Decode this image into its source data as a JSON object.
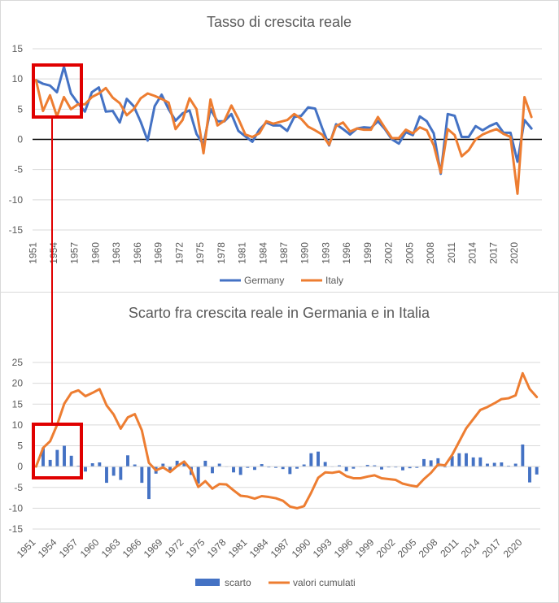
{
  "chart_data": [
    {
      "type": "line",
      "title": "Tasso di crescita reale",
      "xlabel": "",
      "ylabel": "",
      "ylim": [
        -15,
        15
      ],
      "yticks": [
        15,
        10,
        5,
        0,
        -5,
        -10,
        -15
      ],
      "x_start": 1951,
      "x_end": 2023,
      "x_tick_labels": [
        "1951",
        "1954",
        "1957",
        "1960",
        "1963",
        "1966",
        "1969",
        "1972",
        "1975",
        "1978",
        "1981",
        "1984",
        "1987",
        "1990",
        "1993",
        "1996",
        "1999",
        "2002",
        "2005",
        "2008",
        "2011",
        "2014",
        "2017",
        "2020"
      ],
      "legend_position": "bottom",
      "grid": true,
      "series": [
        {
          "name": "Germany",
          "color": "#4472C4",
          "values": [
            9.8,
            9.2,
            8.9,
            7.8,
            12.0,
            7.6,
            6.0,
            4.6,
            7.8,
            8.6,
            4.6,
            4.7,
            2.8,
            6.7,
            5.5,
            2.9,
            -0.2,
            5.5,
            7.4,
            5.0,
            3.1,
            4.3,
            4.8,
            0.9,
            -0.9,
            5.0,
            3.0,
            3.0,
            4.2,
            1.4,
            0.5,
            -0.4,
            1.6,
            2.8,
            2.3,
            2.3,
            1.4,
            3.7,
            3.9,
            5.3,
            5.1,
            1.9,
            -1.0,
            2.5,
            1.7,
            0.8,
            1.8,
            2.0,
            1.9,
            3.0,
            1.7,
            0.0,
            -0.7,
            1.2,
            0.7,
            3.8,
            3.0,
            1.0,
            -5.7,
            4.2,
            3.9,
            0.4,
            0.4,
            2.2,
            1.5,
            2.2,
            2.7,
            1.1,
            1.1,
            -3.7,
            3.2,
            1.8
          ]
        },
        {
          "name": "Italy",
          "color": "#ED7D31",
          "values": [
            9.8,
            4.7,
            7.3,
            3.8,
            7.0,
            5.0,
            5.8,
            5.8,
            7.0,
            7.6,
            8.5,
            6.9,
            6.0,
            4.0,
            5.0,
            6.8,
            7.6,
            7.2,
            6.7,
            6.1,
            1.7,
            3.2,
            6.8,
            5.0,
            -2.3,
            6.6,
            2.3,
            3.1,
            5.6,
            3.4,
            0.8,
            0.4,
            1.0,
            3.0,
            2.6,
            2.9,
            3.2,
            4.2,
            3.4,
            2.1,
            1.5,
            0.8,
            -0.9,
            2.2,
            2.8,
            1.3,
            1.8,
            1.6,
            1.6,
            3.7,
            1.9,
            0.2,
            0.2,
            1.6,
            1.0,
            2.0,
            1.5,
            -1.0,
            -5.5,
            1.7,
            0.7,
            -2.8,
            -1.8,
            0.0,
            0.8,
            1.3,
            1.7,
            0.9,
            0.4,
            -9.0,
            7.0,
            3.7
          ]
        }
      ]
    },
    {
      "type": "bar",
      "title": "Scarto fra crescita reale in Germania e in Italia",
      "xlabel": "",
      "ylabel": "",
      "ylim": [
        -15,
        25
      ],
      "yticks": [
        25,
        20,
        15,
        10,
        5,
        0,
        -5,
        -10,
        -15
      ],
      "x_start": 1951,
      "x_end": 2022,
      "x_tick_labels": [
        "1951",
        "1954",
        "1957",
        "1960",
        "1963",
        "1966",
        "1969",
        "1972",
        "1975",
        "1978",
        "1981",
        "1984",
        "1987",
        "1990",
        "1993",
        "1996",
        "1999",
        "2002",
        "2005",
        "2008",
        "2011",
        "2014",
        "2017",
        "2020"
      ],
      "legend_position": "bottom",
      "grid": true,
      "series": [
        {
          "name": "scarto",
          "type": "bar",
          "color": "#4472C4",
          "values": [
            0.0,
            4.5,
            1.6,
            4.0,
            5.0,
            2.6,
            0.2,
            -1.2,
            0.8,
            1.0,
            -3.9,
            -2.2,
            -3.2,
            2.7,
            0.5,
            -3.9,
            -7.8,
            -1.7,
            0.7,
            -1.1,
            1.4,
            1.1,
            -2.0,
            -4.1,
            1.4,
            -1.6,
            0.7,
            -0.1,
            -1.4,
            -2.0,
            -0.3,
            -0.8,
            0.6,
            -0.2,
            -0.3,
            -0.6,
            -1.8,
            -0.5,
            0.5,
            3.2,
            3.6,
            1.1,
            -0.1,
            0.3,
            -1.1,
            -0.5,
            0.0,
            0.4,
            0.3,
            -0.7,
            -0.2,
            -0.2,
            -0.9,
            -0.4,
            -0.3,
            1.8,
            1.5,
            2.0,
            -0.2,
            2.5,
            3.2,
            3.2,
            2.2,
            2.2,
            0.7,
            0.9,
            1.0,
            0.2,
            0.7,
            5.3,
            -3.8,
            -1.9
          ]
        },
        {
          "name": "valori cumulati",
          "type": "line",
          "color": "#ED7D31",
          "values": [
            0.0,
            4.5,
            6.1,
            10.1,
            15.1,
            17.7,
            18.3,
            16.9,
            17.7,
            18.6,
            14.7,
            12.5,
            9.1,
            11.8,
            12.6,
            8.7,
            0.9,
            -0.9,
            -0.2,
            -1.3,
            0.1,
            1.2,
            -0.8,
            -4.9,
            -3.5,
            -5.3,
            -4.2,
            -4.3,
            -5.7,
            -7.0,
            -7.2,
            -7.7,
            -7.1,
            -7.3,
            -7.6,
            -8.2,
            -9.6,
            -10.0,
            -9.5,
            -6.3,
            -2.7,
            -1.4,
            -1.5,
            -1.2,
            -2.3,
            -2.8,
            -2.8,
            -2.4,
            -2.1,
            -2.8,
            -3.0,
            -3.2,
            -4.1,
            -4.5,
            -4.8,
            -3.0,
            -1.5,
            0.5,
            0.3,
            2.8,
            6.0,
            9.2,
            11.4,
            13.6,
            14.3,
            15.2,
            16.2,
            16.4,
            17.1,
            22.4,
            18.6,
            16.7
          ]
        }
      ]
    }
  ],
  "annotation": {
    "color": "#E00000"
  }
}
